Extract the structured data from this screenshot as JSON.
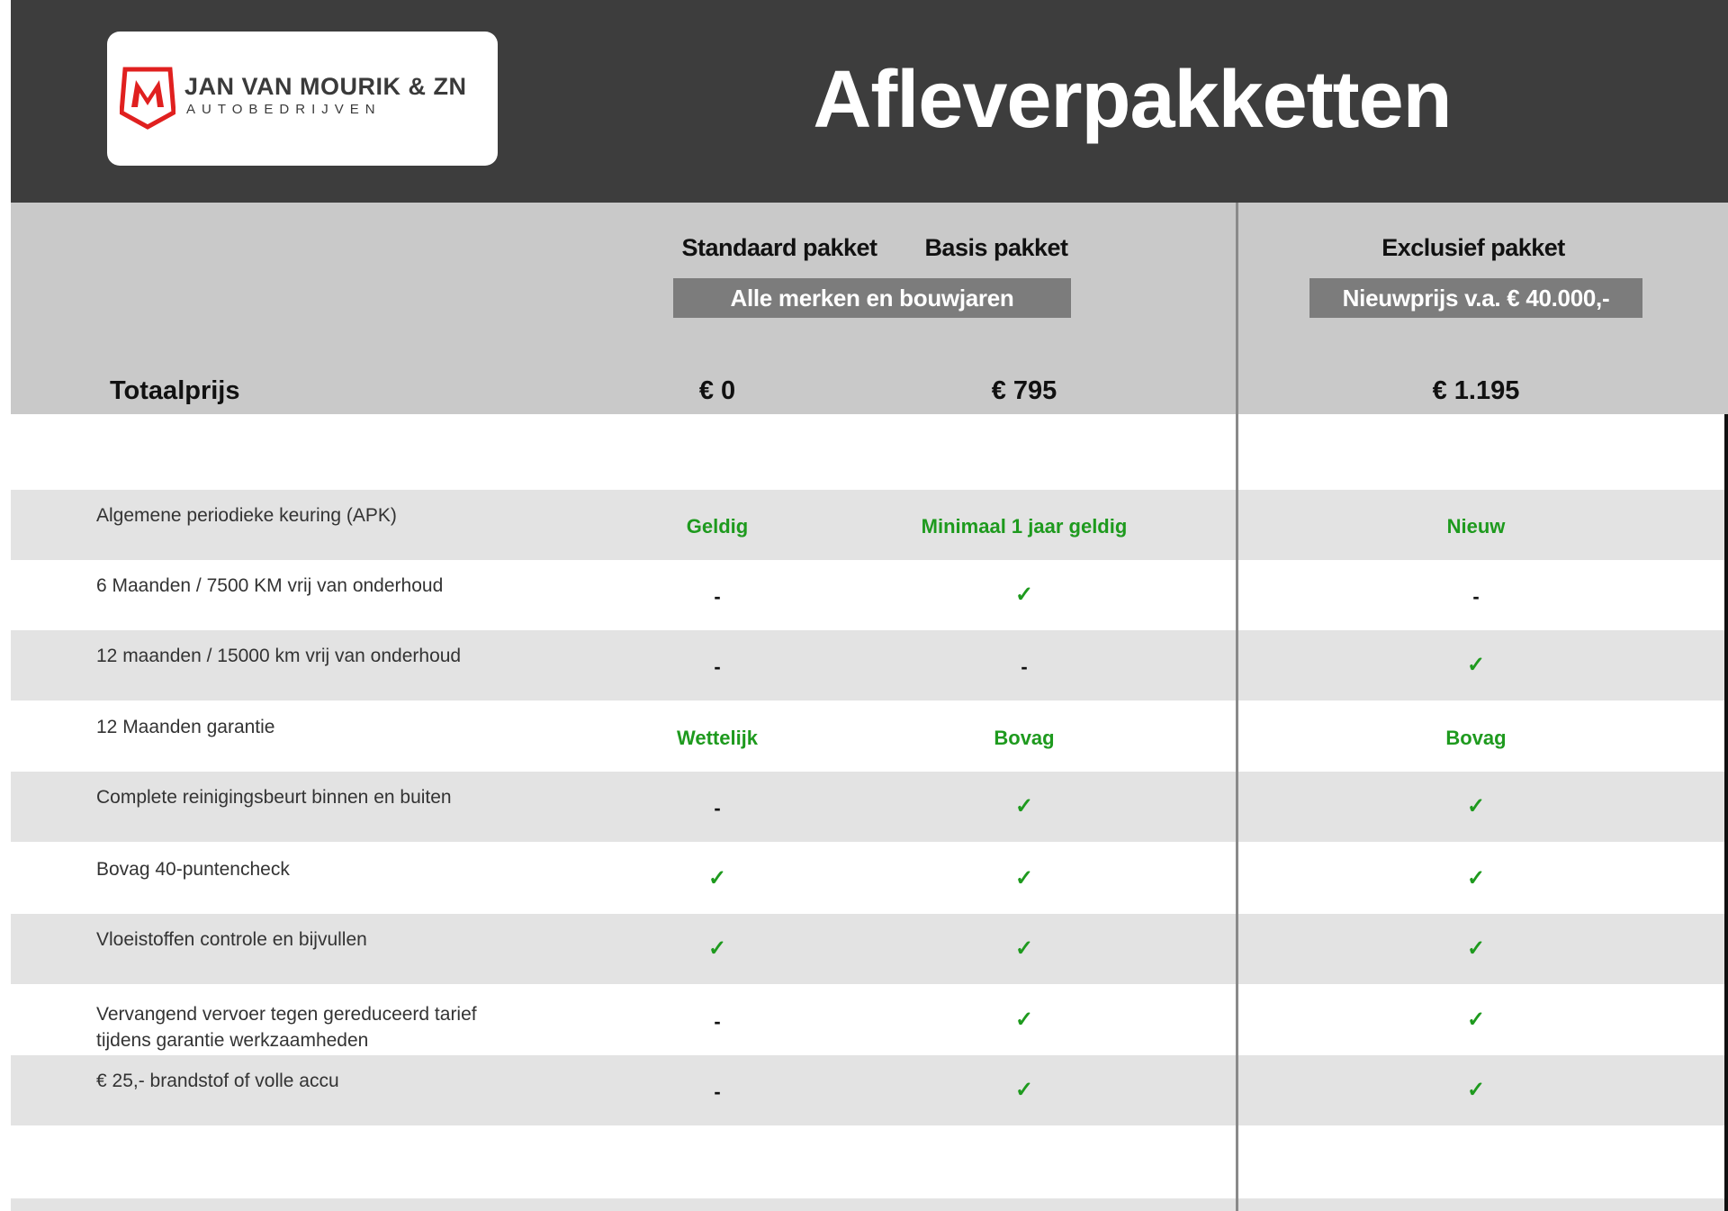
{
  "brand": {
    "name": "JAN VAN MOURIK & ZN",
    "subtitle": "AUTOBEDRIJVEN",
    "logo_letter": "M",
    "color": "#e0201f"
  },
  "title": "Afleverpakketten",
  "columns": [
    {
      "name": "Standaard pakket",
      "price": "€ 0"
    },
    {
      "name": "Basis pakket",
      "price": "€ 795"
    },
    {
      "name": "Exclusief pakket",
      "price": "€ 1.195"
    }
  ],
  "tags": {
    "standard_basis": "Alle merken en bouwjaren",
    "exclusive": "Nieuwprijs v.a. € 40.000,-"
  },
  "total_label": "Totaalprijs",
  "colors": {
    "header": "#3d3d3d",
    "header_gray": "#c9c9c9",
    "row_alt": "#e3e3e3",
    "check_green": "#1e9a1e"
  },
  "rows": [
    {
      "label": [
        "Algemene periodieke keuring (APK)"
      ],
      "values": [
        "Geldig",
        "Minimaal 1 jaar geldig",
        "Nieuw"
      ]
    },
    {
      "label": [
        "6 Maanden / 7500 KM vrij van onderhoud"
      ],
      "values": [
        "-",
        "✓",
        "-"
      ]
    },
    {
      "label": [
        "12 maanden / 15000 km vrij van onderhoud"
      ],
      "values": [
        "-",
        "-",
        "✓"
      ]
    },
    {
      "label": [
        "12 Maanden  garantie"
      ],
      "values": [
        "Wettelijk",
        "Bovag",
        "Bovag"
      ]
    },
    {
      "label": [
        "Complete reinigingsbeurt binnen en buiten"
      ],
      "values": [
        "-",
        "✓",
        "✓"
      ]
    },
    {
      "label": [
        "Bovag 40-puntencheck"
      ],
      "values": [
        "✓",
        "✓",
        "✓"
      ]
    },
    {
      "label": [
        "Vloeistoffen controle en bijvullen"
      ],
      "values": [
        "✓",
        "✓",
        "✓"
      ]
    },
    {
      "label": [
        "Vervangend vervoer tegen gereduceerd tarief",
        "tijdens garantie werkzaamheden"
      ],
      "values": [
        "-",
        "✓",
        "✓"
      ]
    },
    {
      "label": [
        "€ 25,- brandstof of  volle accu"
      ],
      "values": [
        "-",
        "✓",
        "✓"
      ]
    }
  ]
}
